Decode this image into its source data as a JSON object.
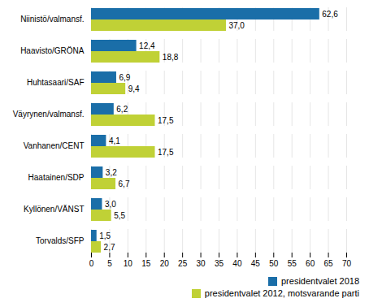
{
  "chart_data": {
    "type": "bar",
    "orientation": "horizontal",
    "categories": [
      "Niinistö/valmansf.",
      "Haavisto/GRÖNA",
      "Huhtasaari/SAF",
      "Väyrynen/valmansf.",
      "Vanhanen/CENT",
      "Haatainen/SDP",
      "Kyllönen/VÄNST",
      "Torvalds/SFP"
    ],
    "series": [
      {
        "name": "presidentvalet 2018",
        "color": "#1a6ea8",
        "values": [
          62.6,
          12.4,
          6.9,
          6.2,
          4.1,
          3.2,
          3.0,
          1.5
        ],
        "value_labels": [
          "62,6",
          "12,4",
          "6,9",
          "6,2",
          "4,1",
          "3,2",
          "3,0",
          "1,5"
        ]
      },
      {
        "name": "presidentvalet 2012, motsvarande parti",
        "color": "#c0d136",
        "values": [
          37.0,
          18.8,
          9.4,
          17.5,
          17.5,
          6.7,
          5.5,
          2.7
        ],
        "value_labels": [
          "37,0",
          "18,8",
          "9,4",
          "17,5",
          "17,5",
          "6,7",
          "5,5",
          "2,7"
        ]
      }
    ],
    "xlim": [
      0,
      70
    ],
    "xticks": [
      0,
      5,
      10,
      15,
      20,
      25,
      30,
      35,
      40,
      45,
      50,
      55,
      60,
      65,
      70
    ],
    "grid": true,
    "data_labels": true,
    "legend": "lower right"
  }
}
